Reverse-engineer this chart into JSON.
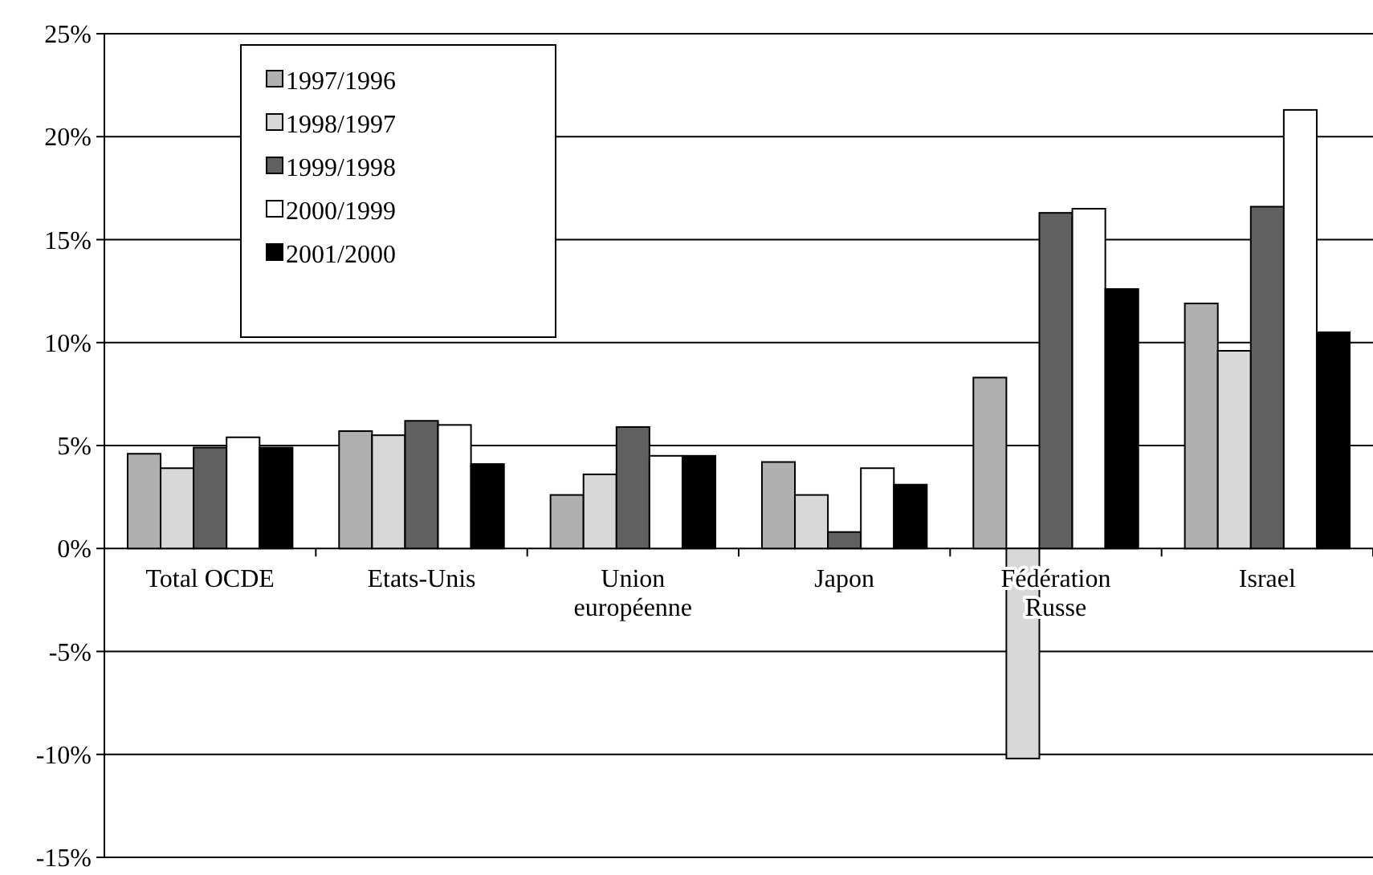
{
  "chart_data": {
    "type": "bar",
    "categories": [
      "Total OCDE",
      "Etats-Unis",
      "Union européenne",
      "Japon",
      "Fédération Russe",
      "Israel"
    ],
    "series": [
      {
        "name": "1997/1996",
        "color": "#b0b0b0",
        "values": [
          4.6,
          5.7,
          2.6,
          4.2,
          8.3,
          11.9
        ]
      },
      {
        "name": "1998/1997",
        "color": "#d8d8d8",
        "values": [
          3.9,
          5.5,
          3.6,
          2.6,
          -10.2,
          9.6
        ]
      },
      {
        "name": "1999/1998",
        "color": "#606060",
        "values": [
          4.9,
          6.2,
          5.9,
          0.8,
          16.3,
          16.6
        ]
      },
      {
        "name": "2000/1999",
        "color": "#ffffff",
        "values": [
          5.4,
          6.0,
          4.5,
          3.9,
          16.5,
          21.3
        ]
      },
      {
        "name": "2001/2000",
        "color": "#000000",
        "values": [
          4.9,
          4.1,
          4.5,
          3.1,
          12.6,
          10.5
        ]
      }
    ],
    "ylim": [
      -15,
      25
    ],
    "yticks": [
      {
        "value": -15,
        "label": "-15%"
      },
      {
        "value": -10,
        "label": "-10%"
      },
      {
        "value": -5,
        "label": "-5%"
      },
      {
        "value": 0,
        "label": "0%"
      },
      {
        "value": 5,
        "label": "5%"
      },
      {
        "value": 10,
        "label": "10%"
      },
      {
        "value": 15,
        "label": "15%"
      },
      {
        "value": 20,
        "label": "20%"
      },
      {
        "value": 25,
        "label": "25%"
      }
    ],
    "grid": "y",
    "legend": "top left"
  }
}
